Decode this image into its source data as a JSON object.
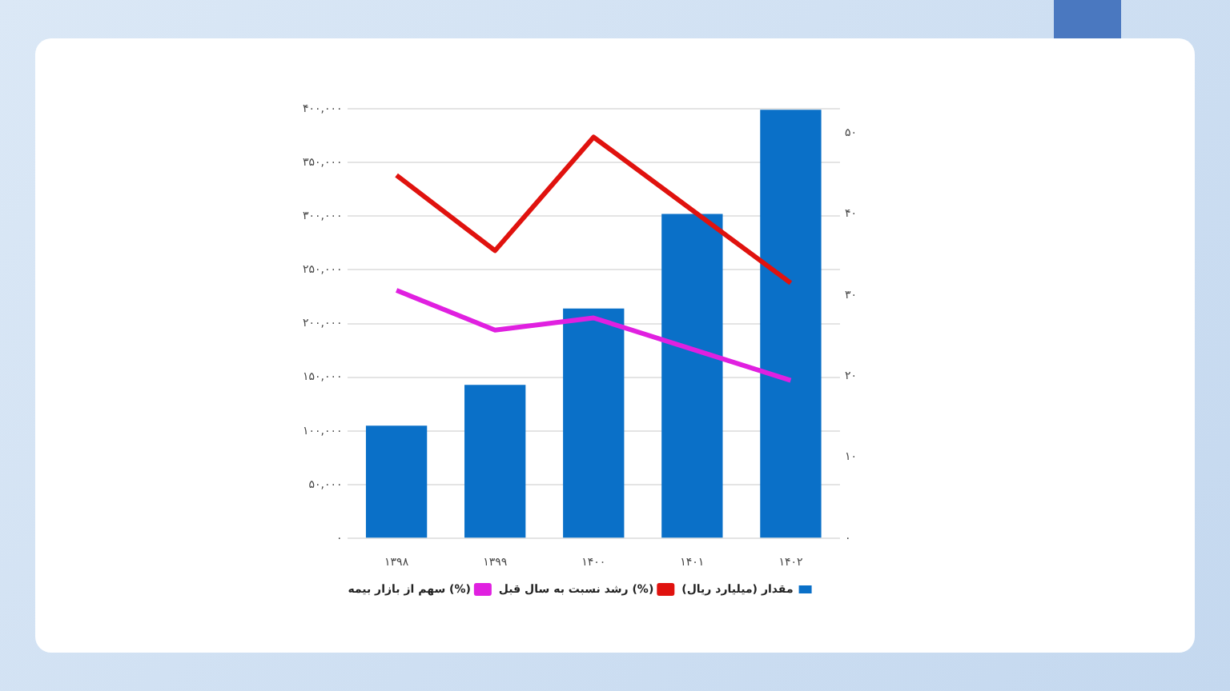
{
  "chart_data": {
    "type": "bar",
    "categories": [
      "۱۳۹۸",
      "۱۳۹۹",
      "۱۴۰۰",
      "۱۴۰۱",
      "۱۴۰۲"
    ],
    "series": [
      {
        "name": "مقدار (میلیارد ریال)",
        "color": "#0a70c8",
        "values": [
          105000,
          143000,
          214000,
          302000,
          399000
        ]
      },
      {
        "name": "رشد نسبت به سال قبل (%)",
        "type": "line",
        "axis": "y2",
        "color": "#e0120e",
        "values": [
          44.8,
          35.5,
          49.5,
          null,
          31.5
        ]
      },
      {
        "name": "سهم از بازار بیمه (%)",
        "type": "line",
        "axis": "y2",
        "color": "#e020e0",
        "values": [
          30.6,
          25.7,
          27.2,
          null,
          19.5
        ]
      }
    ],
    "ylim": [
      0,
      400000
    ],
    "yticks": [
      {
        "value": 0,
        "label": "۰"
      },
      {
        "value": 50000,
        "label": "۵۰,۰۰۰"
      },
      {
        "value": 100000,
        "label": "۱۰۰,۰۰۰"
      },
      {
        "value": 150000,
        "label": "۱۵۰,۰۰۰"
      },
      {
        "value": 200000,
        "label": "۲۰۰,۰۰۰"
      },
      {
        "value": 250000,
        "label": "۲۵۰,۰۰۰"
      },
      {
        "value": 300000,
        "label": "۳۰۰,۰۰۰"
      },
      {
        "value": 350000,
        "label": "۳۵۰,۰۰۰"
      },
      {
        "value": 400000,
        "label": "۴۰۰,۰۰۰"
      }
    ],
    "y2lim": [
      0,
      53
    ],
    "y2ticks": [
      {
        "value": 0,
        "label": "۰"
      },
      {
        "value": 10,
        "label": "۱۰"
      },
      {
        "value": 20,
        "label": "۲۰"
      },
      {
        "value": 30,
        "label": "۳۰"
      },
      {
        "value": 40,
        "label": "۴۰"
      },
      {
        "value": 50,
        "label": "۵۰"
      }
    ],
    "grid": "y",
    "legend": "bottom",
    "marker": "none",
    "line_style": "solid"
  }
}
